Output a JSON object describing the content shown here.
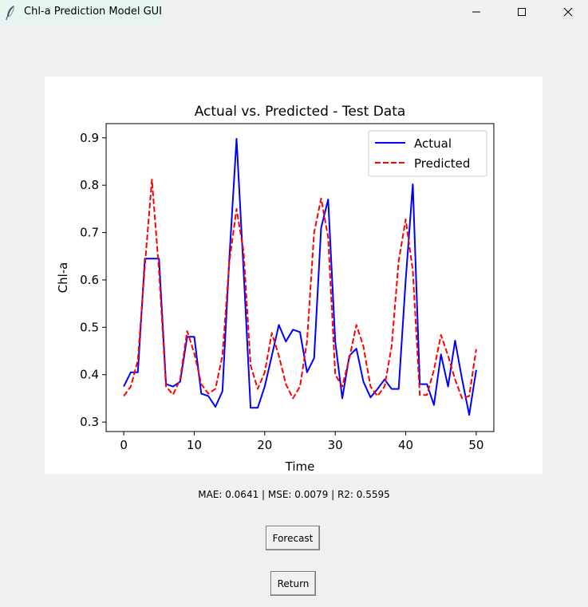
{
  "window": {
    "title": "Chl-a Prediction Model GUI",
    "icons": [
      "feather-icon",
      "minimize-icon",
      "maximize-icon",
      "close-icon"
    ]
  },
  "chart_data": {
    "type": "line",
    "title": "Actual vs. Predicted - Test Data",
    "xlabel": "Time",
    "ylabel": "Chl-a",
    "xlim": [
      -2.5,
      52.5
    ],
    "ylim": [
      0.28,
      0.93
    ],
    "xticks": [
      0,
      10,
      20,
      30,
      40,
      50
    ],
    "yticks": [
      0.3,
      0.4,
      0.5,
      0.6,
      0.7,
      0.8,
      0.9
    ],
    "legend_position": "top-right",
    "x": [
      0,
      1,
      2,
      3,
      4,
      5,
      6,
      7,
      8,
      9,
      10,
      11,
      12,
      13,
      14,
      15,
      16,
      17,
      18,
      19,
      20,
      21,
      22,
      23,
      24,
      25,
      26,
      27,
      28,
      29,
      30,
      31,
      32,
      33,
      34,
      35,
      36,
      37,
      38,
      39,
      40,
      41,
      42,
      43,
      44,
      45,
      46,
      47,
      48,
      49,
      50
    ],
    "series": [
      {
        "name": "Actual",
        "color": "#0000ff",
        "style": "solid",
        "values": [
          0.375,
          0.405,
          0.405,
          0.645,
          0.645,
          0.645,
          0.38,
          0.375,
          0.385,
          0.48,
          0.48,
          0.36,
          0.355,
          0.332,
          0.365,
          0.65,
          0.898,
          0.62,
          0.33,
          0.33,
          0.375,
          0.44,
          0.505,
          0.47,
          0.495,
          0.49,
          0.405,
          0.435,
          0.71,
          0.77,
          0.47,
          0.35,
          0.44,
          0.455,
          0.385,
          0.352,
          0.37,
          0.39,
          0.37,
          0.37,
          0.6,
          0.802,
          0.38,
          0.38,
          0.336,
          0.443,
          0.375,
          0.472,
          0.39,
          0.315,
          0.41
        ]
      },
      {
        "name": "Predicted",
        "color": "#ff0000",
        "style": "dashed",
        "values": [
          0.355,
          0.375,
          0.43,
          0.63,
          0.812,
          0.62,
          0.375,
          0.358,
          0.39,
          0.492,
          0.445,
          0.38,
          0.36,
          0.37,
          0.44,
          0.64,
          0.75,
          0.66,
          0.42,
          0.37,
          0.405,
          0.488,
          0.44,
          0.38,
          0.35,
          0.375,
          0.47,
          0.7,
          0.772,
          0.69,
          0.4,
          0.375,
          0.435,
          0.505,
          0.46,
          0.375,
          0.355,
          0.375,
          0.46,
          0.64,
          0.728,
          0.62,
          0.357,
          0.357,
          0.41,
          0.484,
          0.44,
          0.39,
          0.35,
          0.355,
          0.454
        ]
      }
    ]
  },
  "metrics": {
    "text": "MAE: 0.0641 | MSE: 0.0079 | R2: 0.5595"
  },
  "buttons": {
    "forecast": "Forecast",
    "return": "Return"
  }
}
